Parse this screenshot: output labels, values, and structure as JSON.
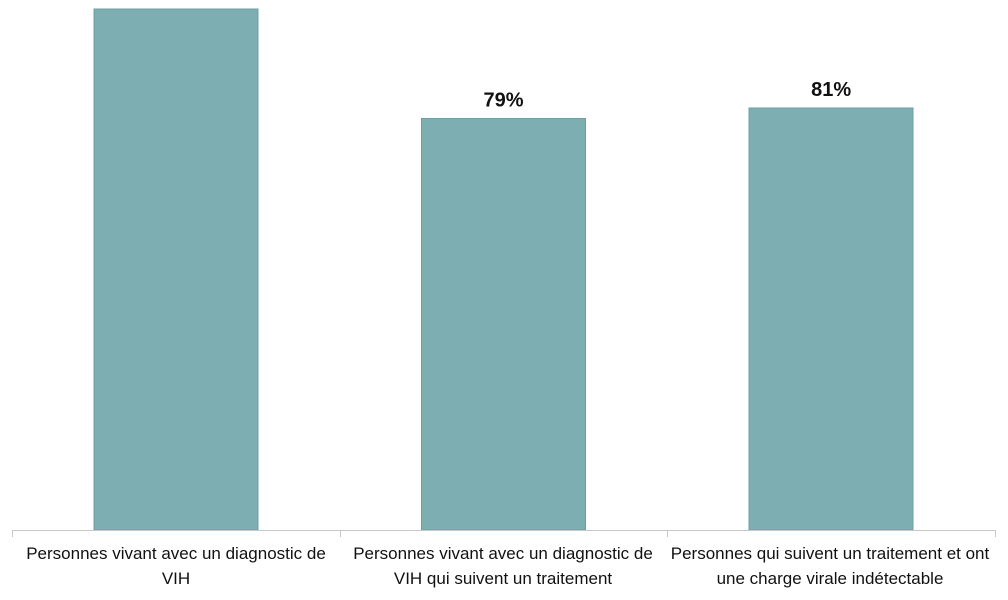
{
  "chart_data": {
    "type": "bar",
    "categories": [
      "Personnes vivant avec un diagnostic de VIH",
      "Personnes vivant avec un diagnostic de VIH qui suivent un traitement",
      "Personnes qui suivent un traitement et ont une charge virale indétectable"
    ],
    "values": [
      100,
      79,
      81
    ],
    "data_labels": [
      "",
      "79%",
      "81%"
    ],
    "ylim": [
      0,
      100
    ],
    "grid": false,
    "legend": "none",
    "colors": {
      "bar": "#7daeb2",
      "bar_edge": "#6c9fa3",
      "axis": "#c8c8c8",
      "text": "#111111"
    }
  }
}
